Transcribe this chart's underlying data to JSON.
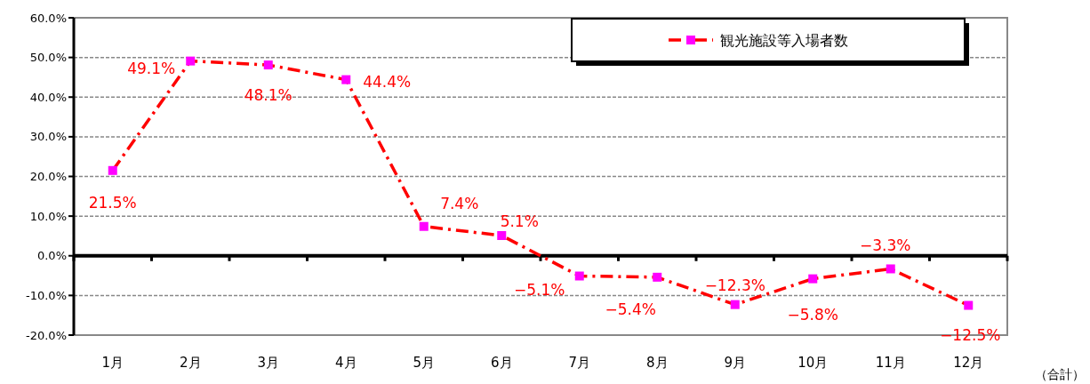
{
  "chart_data": {
    "type": "line",
    "categories": [
      "1月",
      "2月",
      "3月",
      "4月",
      "5月",
      "6月",
      "7月",
      "8月",
      "9月",
      "10月",
      "11月",
      "12月"
    ],
    "series": [
      {
        "name": "観光施設等入場者数",
        "color": "#ff0000",
        "colors": [
          "#ff00ff",
          "#ff00ff",
          "#ff00ff",
          "#ff00ff",
          "#ff00ff",
          "#ff00ff",
          "#ff00ff",
          "#ff00ff",
          "#ff00ff",
          "#ff00ff",
          "#ff00ff",
          "#ff00ff"
        ],
        "values": [
          21.5,
          49.1,
          48.1,
          44.4,
          7.4,
          5.1,
          -5.1,
          -5.4,
          -12.3,
          -5.8,
          -3.3,
          -12.5
        ],
        "value_labels": [
          "21.5%",
          "49.1%",
          "48.1%",
          "44.4%",
          "7.4%",
          "5.1%",
          "−5.1%",
          "−5.4%",
          "−12.3%",
          "−5.8%",
          "−3.3%",
          "−12.5%"
        ]
      }
    ],
    "ylim": [
      -20,
      60
    ],
    "yticks": [
      {
        "value": -20,
        "label": "-20.0%"
      },
      {
        "value": -10,
        "label": "-10.0%"
      },
      {
        "value": 0,
        "label": "0.0%"
      },
      {
        "value": 10,
        "label": "10.0%"
      },
      {
        "value": 20,
        "label": "20.0%"
      },
      {
        "value": 30,
        "label": "30.0%"
      },
      {
        "value": 40,
        "label": "40.0%"
      },
      {
        "value": 50,
        "label": "50.0%"
      },
      {
        "value": 60,
        "label": "60.0%"
      }
    ],
    "grid": "y",
    "legend": "top right",
    "marker": "square",
    "line_style": "dashed",
    "annotations": [
      "（合計）"
    ]
  }
}
